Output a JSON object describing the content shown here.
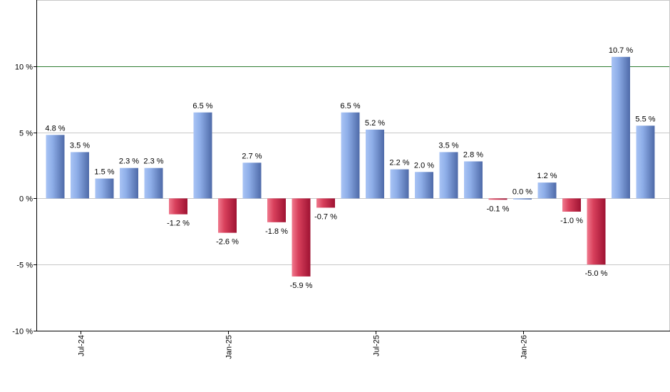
{
  "chart_data": {
    "type": "bar",
    "categories": [
      "2024-06",
      "2024-07",
      "2024-08",
      "2024-09",
      "2024-10",
      "2024-11",
      "2024-12",
      "2025-01",
      "2025-02",
      "2025-03",
      "2025-04",
      "2025-05",
      "2025-06",
      "2025-07",
      "2025-08",
      "2025-09",
      "2025-10",
      "2025-11",
      "2025-12",
      "2026-01",
      "2026-02",
      "2026-03",
      "2026-04",
      "2026-05",
      "2026-06"
    ],
    "values": [
      4.8,
      3.5,
      1.5,
      2.3,
      2.3,
      -1.2,
      6.5,
      -2.6,
      2.7,
      -1.8,
      -5.9,
      -0.7,
      6.5,
      5.2,
      2.2,
      2.0,
      3.5,
      2.8,
      -0.1,
      0.0,
      1.2,
      -1.0,
      -5.0,
      10.7,
      5.5
    ],
    "value_labels": [
      "4.8 %",
      "3.5 %",
      "1.5 %",
      "2.3 %",
      "2.3 %",
      "-1.2 %",
      "6.5 %",
      "-2.6 %",
      "2.7 %",
      "-1.8 %",
      "-5.9 %",
      "-0.7 %",
      "6.5 %",
      "5.2 %",
      "2.2 %",
      "2.0 %",
      "3.5 %",
      "2.8 %",
      "-0.1 %",
      "0.0 %",
      "1.2 %",
      "-1.0 %",
      "-5.0 %",
      "10.7 %",
      "5.5 %"
    ],
    "ylim": [
      -10,
      15
    ],
    "y_ticks": [
      {
        "value": -10,
        "label": "-10 %"
      },
      {
        "value": -5,
        "label": "-5 %"
      },
      {
        "value": 0,
        "label": "0 %"
      },
      {
        "value": 5,
        "label": "5 %"
      },
      {
        "value": 10,
        "label": "10 %"
      }
    ],
    "x_ticks": [
      {
        "index": 1,
        "label": "Jul-24"
      },
      {
        "index": 7,
        "label": "Jan-25"
      },
      {
        "index": 13,
        "label": "Jul-25"
      },
      {
        "index": 19,
        "label": "Jan-26"
      }
    ],
    "reference_line": {
      "value": 10,
      "color": "#2e7d32"
    },
    "grid": true,
    "colors": {
      "positive_light": "#a9c4f5",
      "positive_dark": "#5a78b8",
      "negative_light": "#f07a8e",
      "negative_dark": "#b8173a",
      "grid": "#c8c8c8",
      "axis": "#000000"
    },
    "title": "",
    "xlabel": "",
    "ylabel": ""
  }
}
